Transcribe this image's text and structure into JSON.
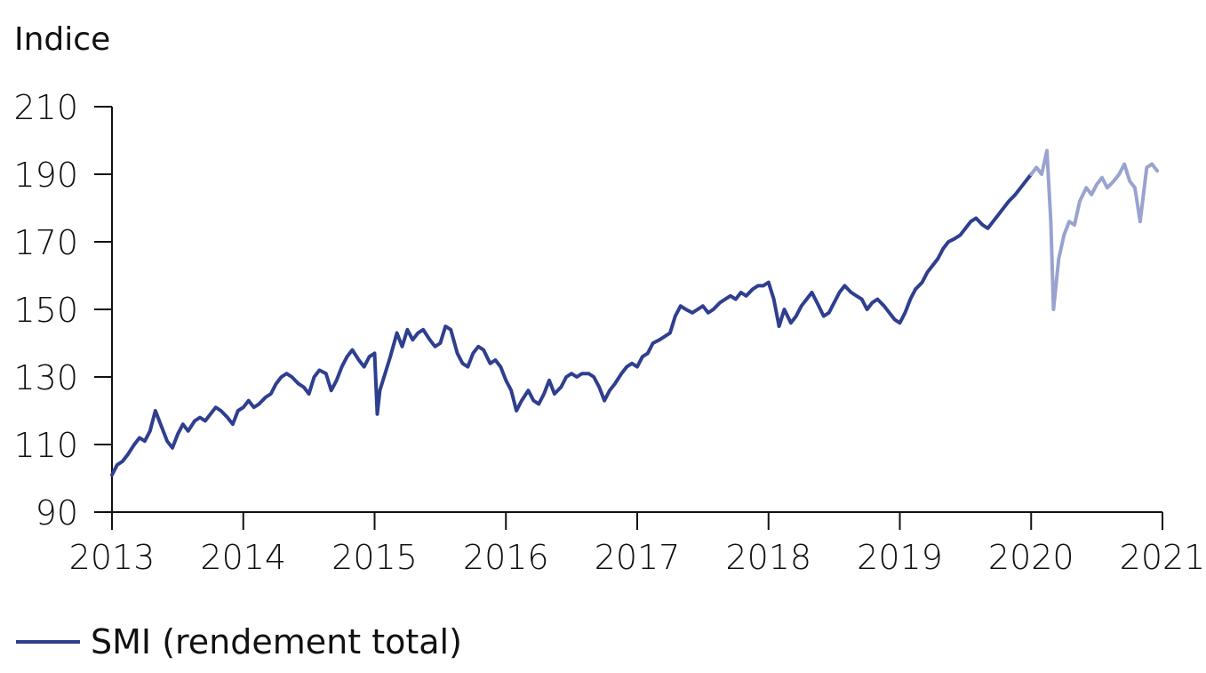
{
  "chart_data": {
    "type": "line",
    "ylabel": "Indice",
    "ylim": [
      90,
      210
    ],
    "yticks": [
      90,
      110,
      130,
      150,
      170,
      190,
      210
    ],
    "xlim": [
      2013,
      2021.2
    ],
    "xticks": [
      2013,
      2014,
      2015,
      2016,
      2017,
      2018,
      2019,
      2020,
      2021
    ],
    "legend": {
      "position": "bottom-left",
      "label": "SMI (rendement total)"
    },
    "grid": false,
    "colors": {
      "main": "#2f3f8f",
      "faded": "#9aa3cf",
      "axis": "#111111"
    },
    "series": [
      {
        "name": "SMI (rendement total)",
        "x": [
          2013.0,
          2013.04,
          2013.08,
          2013.12,
          2013.17,
          2013.21,
          2013.25,
          2013.29,
          2013.33,
          2013.37,
          2013.42,
          2013.46,
          2013.5,
          2013.54,
          2013.58,
          2013.63,
          2013.67,
          2013.71,
          2013.75,
          2013.79,
          2013.83,
          2013.88,
          2013.92,
          2013.96,
          2014.0,
          2014.04,
          2014.08,
          2014.12,
          2014.17,
          2014.21,
          2014.25,
          2014.29,
          2014.33,
          2014.37,
          2014.42,
          2014.46,
          2014.5,
          2014.54,
          2014.58,
          2014.63,
          2014.67,
          2014.71,
          2014.75,
          2014.79,
          2014.83,
          2014.88,
          2014.92,
          2014.96,
          2015.0,
          2015.02,
          2015.04,
          2015.08,
          2015.12,
          2015.17,
          2015.21,
          2015.25,
          2015.29,
          2015.33,
          2015.37,
          2015.42,
          2015.46,
          2015.5,
          2015.54,
          2015.58,
          2015.63,
          2015.67,
          2015.71,
          2015.75,
          2015.79,
          2015.83,
          2015.88,
          2015.92,
          2015.96,
          2016.0,
          2016.04,
          2016.08,
          2016.12,
          2016.17,
          2016.21,
          2016.25,
          2016.29,
          2016.33,
          2016.37,
          2016.42,
          2016.46,
          2016.5,
          2016.54,
          2016.58,
          2016.63,
          2016.67,
          2016.71,
          2016.75,
          2016.79,
          2016.83,
          2016.88,
          2016.92,
          2016.96,
          2017.0,
          2017.04,
          2017.08,
          2017.12,
          2017.17,
          2017.21,
          2017.25,
          2017.29,
          2017.33,
          2017.37,
          2017.42,
          2017.46,
          2017.5,
          2017.54,
          2017.58,
          2017.63,
          2017.67,
          2017.71,
          2017.75,
          2017.79,
          2017.83,
          2017.88,
          2017.92,
          2017.96,
          2018.0,
          2018.04,
          2018.08,
          2018.12,
          2018.17,
          2018.21,
          2018.25,
          2018.29,
          2018.33,
          2018.37,
          2018.42,
          2018.46,
          2018.5,
          2018.54,
          2018.58,
          2018.63,
          2018.67,
          2018.71,
          2018.75,
          2018.79,
          2018.83,
          2018.88,
          2018.92,
          2018.96,
          2019.0,
          2019.04,
          2019.08,
          2019.12,
          2019.17,
          2019.21,
          2019.25,
          2019.29,
          2019.33,
          2019.37,
          2019.42,
          2019.46,
          2019.5,
          2019.54,
          2019.58,
          2019.63,
          2019.67,
          2019.71,
          2019.75,
          2019.79,
          2019.83,
          2019.88,
          2019.92,
          2019.96,
          2020.0
        ],
        "values": [
          101,
          104,
          105,
          107,
          110,
          112,
          111,
          114,
          120,
          116,
          111,
          109,
          113,
          116,
          114,
          117,
          118,
          117,
          119,
          121,
          120,
          118,
          116,
          120,
          121,
          123,
          121,
          122,
          124,
          125,
          128,
          130,
          131,
          130,
          128,
          127,
          125,
          130,
          132,
          131,
          126,
          129,
          133,
          136,
          138,
          135,
          133,
          136,
          137,
          119,
          126,
          131,
          136,
          143,
          139,
          144,
          141,
          143,
          144,
          141,
          139,
          140,
          145,
          144,
          137,
          134,
          133,
          137,
          139,
          138,
          134,
          135,
          133,
          129,
          126,
          120,
          123,
          126,
          123,
          122,
          125,
          129,
          125,
          127,
          130,
          131,
          130,
          131,
          131,
          130,
          127,
          123,
          126,
          128,
          131,
          133,
          134,
          133,
          136,
          137,
          140,
          141,
          142,
          143,
          148,
          151,
          150,
          149,
          150,
          151,
          149,
          150,
          152,
          153,
          154,
          153,
          155,
          154,
          156,
          157,
          157,
          158,
          153,
          145,
          150,
          146,
          148,
          151,
          153,
          155,
          152,
          148,
          149,
          152,
          155,
          157,
          155,
          154,
          153,
          150,
          152,
          153,
          151,
          149,
          147,
          146,
          149,
          153,
          156,
          158,
          161,
          163,
          165,
          168,
          170,
          171,
          172,
          174,
          176,
          177,
          175,
          174,
          176,
          178,
          180,
          182,
          184,
          186,
          188,
          190
        ]
      },
      {
        "name": "",
        "x": [
          2020.0,
          2020.04,
          2020.08,
          2020.12,
          2020.15,
          2020.17,
          2020.21,
          2020.25,
          2020.29,
          2020.33,
          2020.37,
          2020.42,
          2020.46,
          2020.5,
          2020.54,
          2020.58,
          2020.63,
          2020.67,
          2020.71,
          2020.75,
          2020.79,
          2020.83,
          2020.88,
          2020.92,
          2020.96
        ],
        "values": [
          190,
          192,
          190,
          197,
          176,
          150,
          165,
          172,
          176,
          175,
          182,
          186,
          184,
          187,
          189,
          186,
          188,
          190,
          193,
          188,
          186,
          176,
          192,
          193,
          191
        ]
      }
    ]
  }
}
